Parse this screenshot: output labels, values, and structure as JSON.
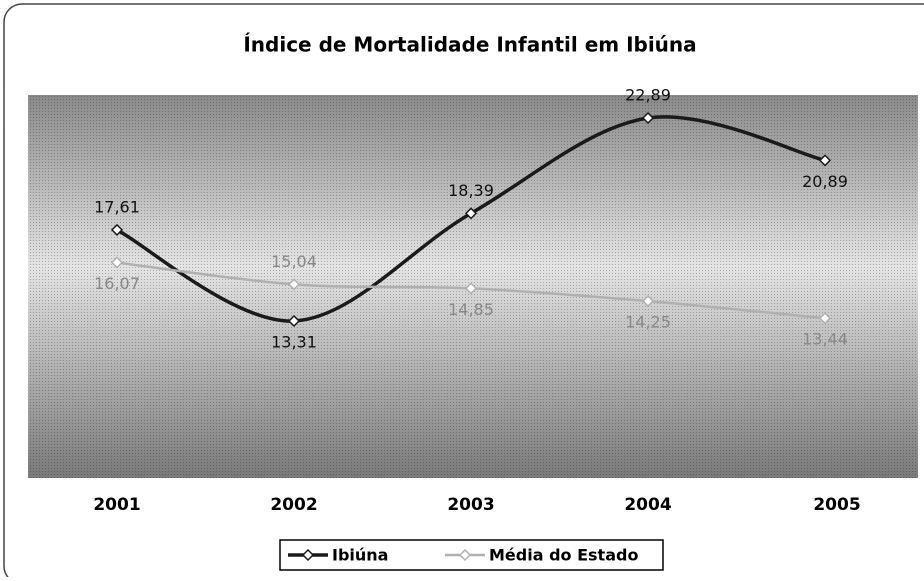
{
  "chart_data": {
    "type": "line",
    "title": "Índice de Mortalidade Infantil em Ibiúna",
    "categories": [
      "2001",
      "2002",
      "2003",
      "2004",
      "2005"
    ],
    "series": [
      {
        "name": "Ibiúna",
        "color": "#1a1a1a",
        "values": [
          17.61,
          13.31,
          18.39,
          22.89,
          20.89
        ],
        "value_labels": [
          "17,61",
          "13,31",
          "18,39",
          "22,89",
          "20,89"
        ]
      },
      {
        "name": "Média do Estado",
        "color": "#b0b0b0",
        "values": [
          16.07,
          15.04,
          14.85,
          14.25,
          13.44
        ],
        "value_labels": [
          "16,07",
          "15,04",
          "14,85",
          "14,25",
          "13,44"
        ]
      }
    ],
    "legend": "bottom"
  }
}
